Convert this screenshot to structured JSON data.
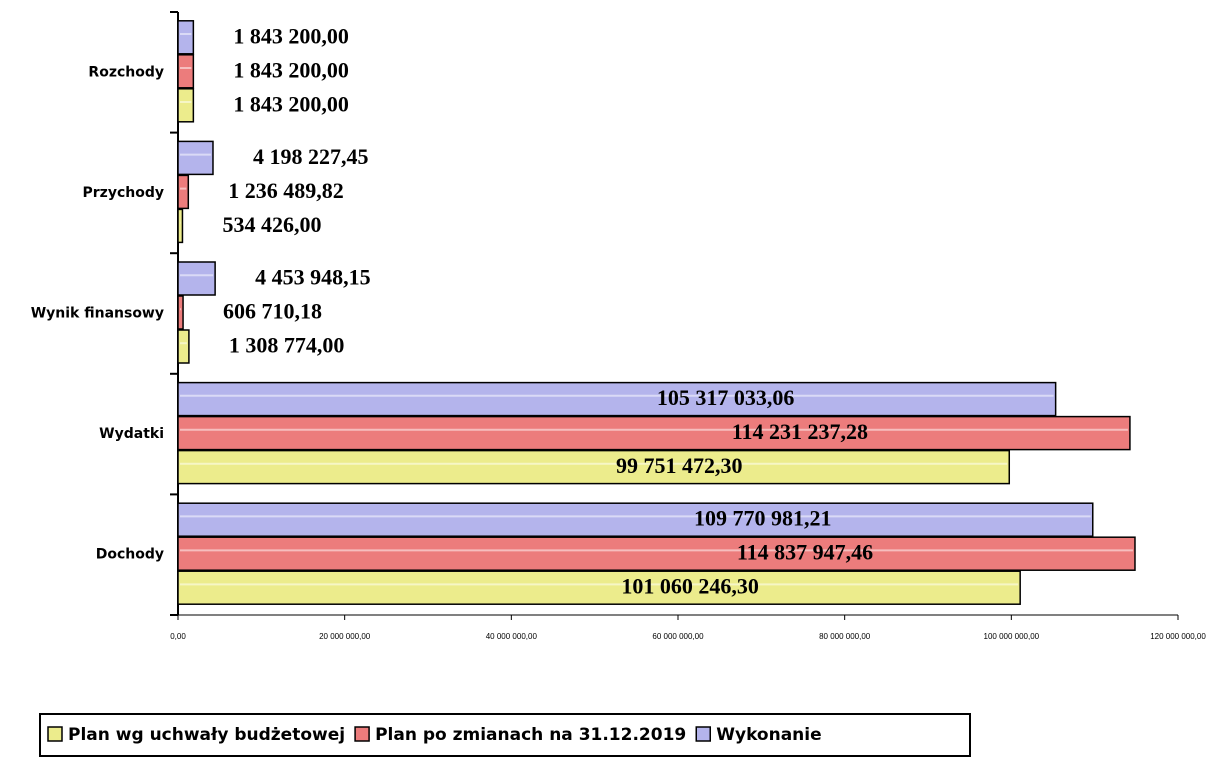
{
  "chart_data": {
    "type": "hbar",
    "categories": [
      "Dochody",
      "Wydatki",
      "Wynik finansowy",
      "Przychody",
      "Rozchody"
    ],
    "series": [
      {
        "name": "Plan wg uchwały budżetowej",
        "color": "#ecec8c",
        "values": [
          101060246.3,
          99751472.3,
          1308774.0,
          534426.0,
          1843200.0
        ],
        "value_labels": [
          "101 060 246,30",
          "99 751 472,30",
          "1 308 774,00",
          "534 426,00",
          "1 843 200,00"
        ]
      },
      {
        "name": "Plan po zmianach na 31.12.2019",
        "color": "#ec7c7c",
        "values": [
          114837947.46,
          114231237.28,
          606710.18,
          1236489.82,
          1843200.0
        ],
        "value_labels": [
          "114 837 947,46",
          "114 231 237,28",
          "606 710,18",
          "1 236 489,82",
          "1 843 200,00"
        ]
      },
      {
        "name": "Wykonanie",
        "color": "#b4b4ec",
        "values": [
          109770981.21,
          105317033.06,
          4453948.15,
          4198227.45,
          1843200.0
        ],
        "value_labels": [
          "109 770 981,21",
          "105 317 033,06",
          "4 453 948,15",
          "4 198 227,45",
          "1 843 200,00"
        ]
      }
    ],
    "xlim": [
      0,
      120000000
    ],
    "xticks": [
      {
        "value": 0,
        "label": "0,00"
      },
      {
        "value": 20000000,
        "label": "20 000 000,00"
      },
      {
        "value": 40000000,
        "label": "40 000 000,00"
      },
      {
        "value": 60000000,
        "label": "60 000 000,00"
      },
      {
        "value": 80000000,
        "label": "80 000 000,00"
      },
      {
        "value": 100000000,
        "label": "100 000 000,00"
      },
      {
        "value": 120000000,
        "label": "120 000 000,00"
      }
    ],
    "legend": "bottom"
  }
}
